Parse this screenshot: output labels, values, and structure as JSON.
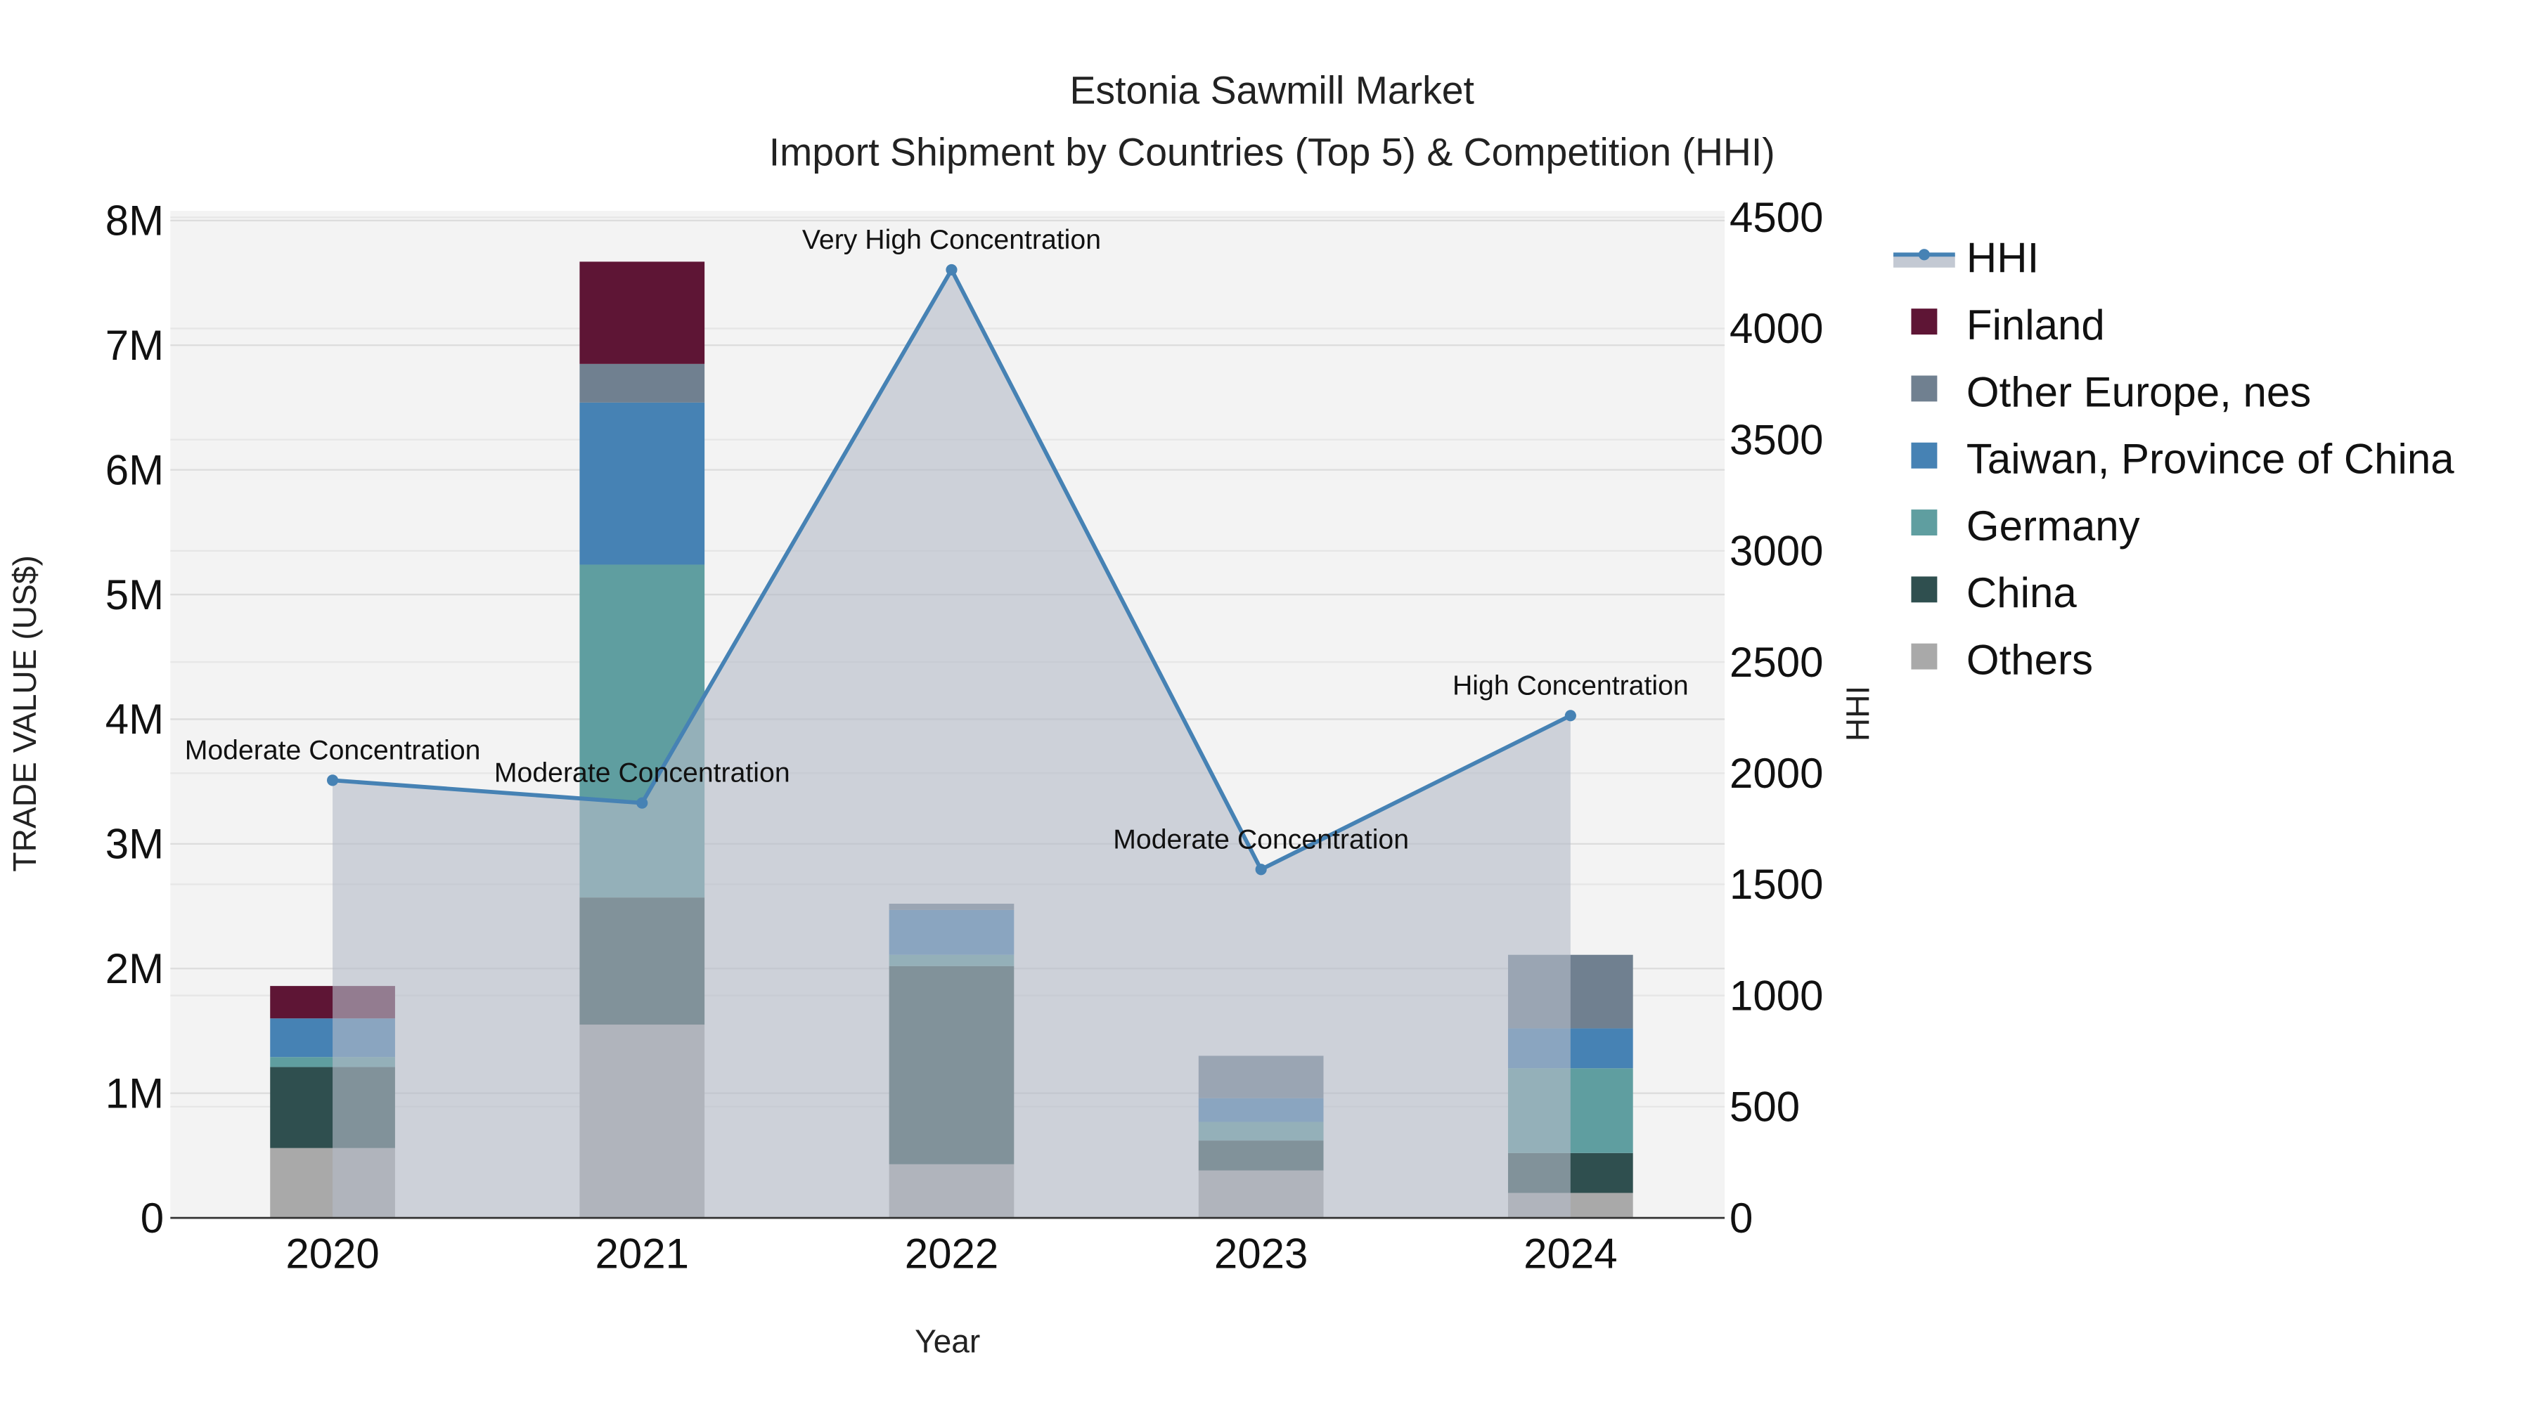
{
  "chart_data": {
    "type": "bar",
    "title": "Estonia Sawmill Market",
    "subtitle": "Import Shipment by Countries (Top 5) & Competition (HHI)",
    "xlabel": "Year",
    "ylabel": "TRADE VALUE (US$)",
    "y2label": "HHI",
    "categories": [
      "2020",
      "2021",
      "2022",
      "2023",
      "2024"
    ],
    "ylim": [
      0,
      8000000
    ],
    "y_ticks": [
      0,
      1000000,
      2000000,
      3000000,
      4000000,
      5000000,
      6000000,
      7000000,
      8000000
    ],
    "y_tick_labels": [
      "0",
      "1M",
      "2M",
      "3M",
      "4M",
      "5M",
      "6M",
      "7M",
      "8M"
    ],
    "y2lim": [
      0,
      4500
    ],
    "y2_ticks": [
      0,
      500,
      1000,
      1500,
      2000,
      2500,
      3000,
      3500,
      4000,
      4500
    ],
    "y2_tick_labels": [
      "0",
      "500",
      "1000",
      "1500",
      "2000",
      "2500",
      "3000",
      "3500",
      "4000",
      "4500"
    ],
    "stacked": true,
    "series": [
      {
        "name": "Others",
        "color": "#a9a9a9",
        "values": [
          560000,
          1550000,
          430000,
          380000,
          200000
        ]
      },
      {
        "name": "China",
        "color": "#2f4f4f",
        "values": [
          650000,
          1020000,
          1590000,
          240000,
          320000
        ]
      },
      {
        "name": "Germany",
        "color": "#5f9ea0",
        "values": [
          80000,
          2670000,
          90000,
          150000,
          680000
        ]
      },
      {
        "name": "Taiwan, Province of China",
        "color": "#4682b4",
        "values": [
          310000,
          1300000,
          360000,
          190000,
          320000
        ]
      },
      {
        "name": "Other Europe, nes",
        "color": "#708090",
        "values": [
          0,
          310000,
          50000,
          340000,
          590000
        ]
      },
      {
        "name": "Finland",
        "color": "#5e1535",
        "values": [
          260000,
          820000,
          0,
          0,
          0
        ]
      }
    ],
    "line_series": {
      "name": "HHI",
      "color": "#4682b4",
      "values": [
        1968,
        1866,
        4264,
        1567,
        2259
      ]
    },
    "annotations": [
      "Moderate Concentration",
      "Moderate Concentration",
      "Very High Concentration",
      "Moderate Concentration",
      "High Concentration"
    ],
    "legend_order": [
      "HHI",
      "Finland",
      "Other Europe, nes",
      "Taiwan, Province of China",
      "Germany",
      "China",
      "Others"
    ],
    "legend_placement": "right",
    "grid": true
  }
}
